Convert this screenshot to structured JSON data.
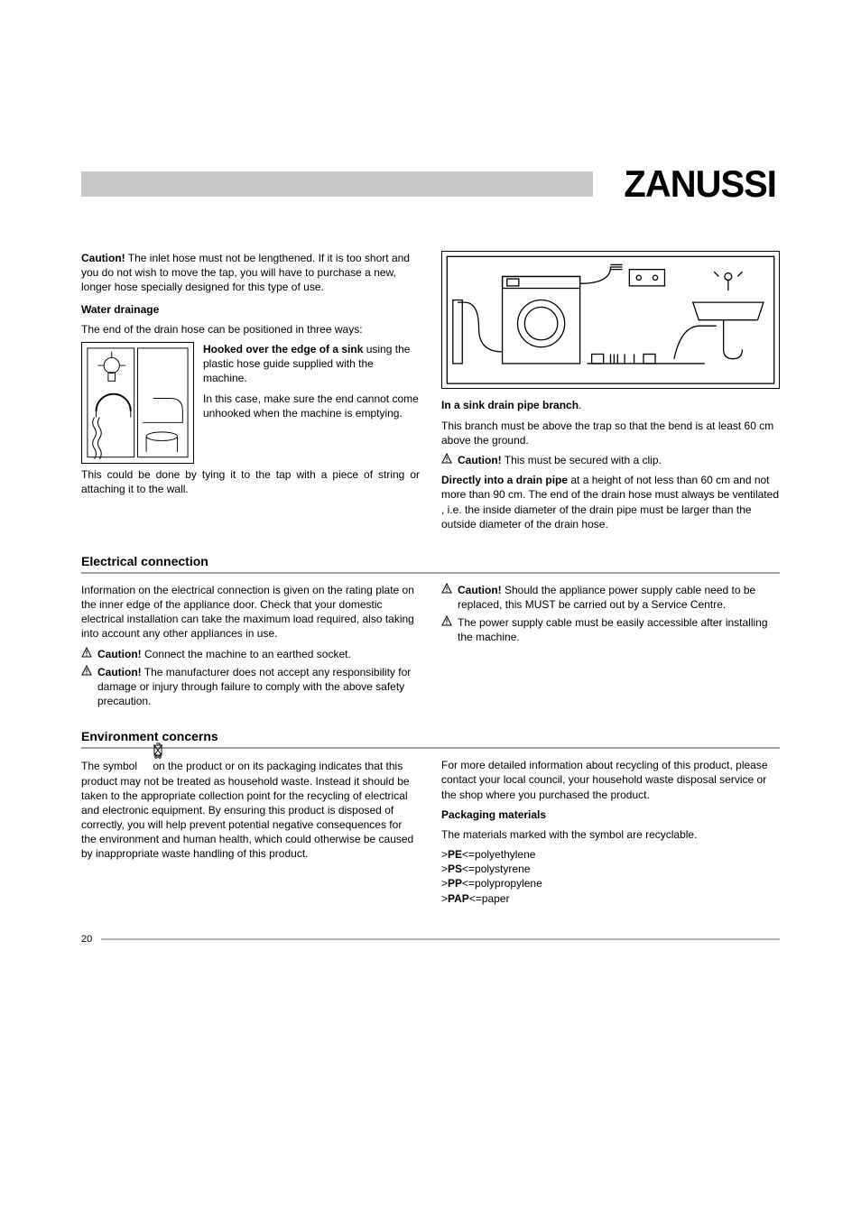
{
  "brand": "ZANUSSI",
  "page_number": "20",
  "colors": {
    "header_bar": "#c8c8c8",
    "rule": "#a0a0a0",
    "text": "#000000",
    "bg": "#ffffff"
  },
  "top": {
    "caution_inlet_label": "Caution!",
    "caution_inlet_text": " The inlet hose must not be lengthened. If it is too short and you do not wish to move the tap, you will have to purchase a new, longer hose specially designed for this type of use.",
    "water_drainage_heading": "Water drainage",
    "water_drainage_intro": "The end of the drain hose can be positioned in three ways:",
    "hooked_bold": "Hooked over the edge of a sink",
    "hooked_text": " using the plastic hose guide supplied with the machine.",
    "hooked_p2": "In this case, make sure the end cannot come unhooked when the machine is emptying.",
    "hooked_p3": "This could be done by tying it to the tap with a piece of string or attaching it to the wall.",
    "sink_branch_bold": "In a sink drain pipe branch",
    "sink_branch_text": ".",
    "sink_branch_p": "This branch must be above the trap so that the bend is at least 60 cm above the ground.",
    "caution_clip_label": "Caution!",
    "caution_clip_text": " This must be secured with a clip.",
    "direct_bold": "Directly into a drain pipe",
    "direct_text": " at a height of not less than 60 cm and not more than 90 cm. The end of the drain hose must always be ventilated , i.e. the inside diameter of the drain pipe must be larger than the outside diameter of the drain hose."
  },
  "electrical": {
    "heading": "Electrical connection",
    "p1": "Information on the electrical connection is given on the rating plate on the inner edge of the appliance door. Check that your domestic electrical installation can take the maximum load required, also taking into account any other appliances in use.",
    "c1_label": "Caution!",
    "c1_text": " Connect the machine to an earthed socket.",
    "c2_label": "Caution!",
    "c2_text": " The manufacturer does not accept any responsibility for damage or injury through failure to comply with the above safety precaution.",
    "c3_label": "Caution!",
    "c3_text": " Should the appliance power supply cable need to be replaced, this MUST be carried out by a Service Centre.",
    "p2": "The power supply cable must be easily accessible after installing the machine."
  },
  "environment": {
    "heading": "Environment concerns",
    "p1a": "The symbol ",
    "p1b": " on the product or on its packaging indicates that this product may not be treated as household waste. Instead it should be taken to the appropriate collection point for the recycling of electrical and electronic equipment. By ensuring this product is disposed of correctly, you will help prevent potential negative consequences for the environment and human health, which could otherwise be caused by inappropriate waste handling of this product.",
    "p2": "For more detailed information about recycling of this product, please contact your local council, your household waste disposal service or the shop where you purchased the product.",
    "packaging_heading": "Packaging materials",
    "packaging_intro": "The materials marked with the symbol are recyclable.",
    "materials": [
      {
        "code": "PE",
        "name": "polyethylene"
      },
      {
        "code": "PS",
        "name": "polystyrene"
      },
      {
        "code": "PP",
        "name": "polypropylene"
      },
      {
        "code": "PAP",
        "name": "paper"
      }
    ]
  }
}
